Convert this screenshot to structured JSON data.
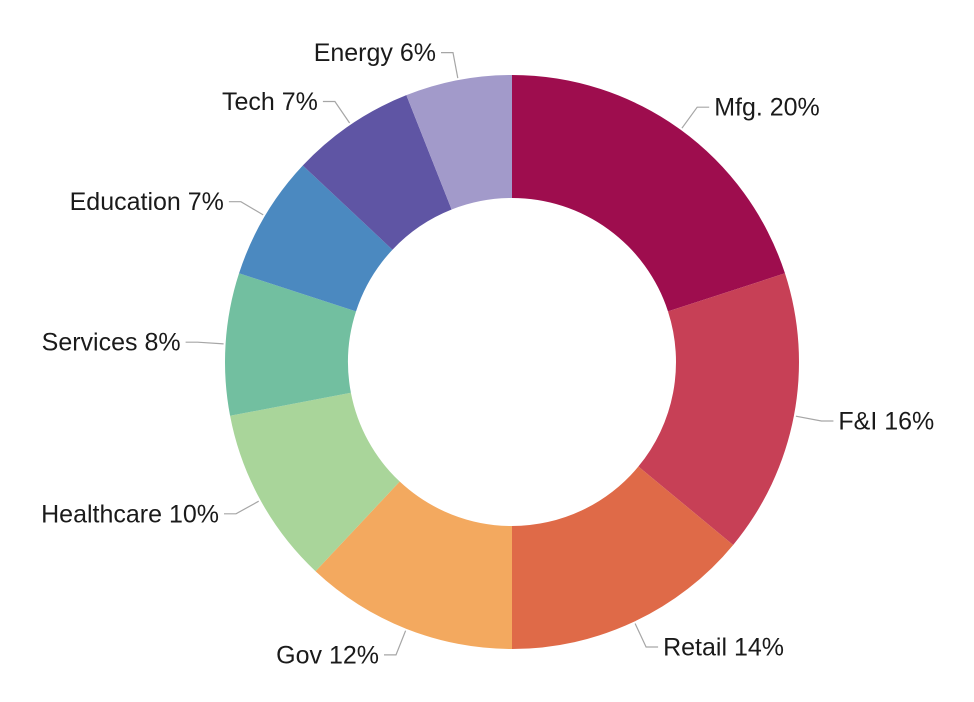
{
  "chart_data": {
    "type": "pie",
    "variant": "donut",
    "title": "",
    "legend_position": "none",
    "labels_style": "outside-with-leader-lines",
    "background_color": "#ffffff",
    "label_text_color": "#1a1a1a",
    "leader_line_color": "#a6a6a6",
    "start_angle_deg": 0,
    "direction": "clockwise",
    "inner_radius_ratio": 0.571,
    "total": 100,
    "categories": [
      "Mfg.",
      "F&I",
      "Retail",
      "Gov",
      "Healthcare",
      "Services",
      "Education",
      "Tech",
      "Energy"
    ],
    "values": [
      20,
      16,
      14,
      12,
      10,
      8,
      7,
      7,
      6
    ],
    "segments": [
      {
        "label": "Mfg.",
        "display_text": "Mfg. 20%",
        "value": 20,
        "color": "#9e0d4e"
      },
      {
        "label": "F&I",
        "display_text": "F&I 16%",
        "value": 16,
        "color": "#c74056"
      },
      {
        "label": "Retail",
        "display_text": "Retail 14%",
        "value": 14,
        "color": "#df6a48"
      },
      {
        "label": "Gov",
        "display_text": "Gov 12%",
        "value": 12,
        "color": "#f3a95f"
      },
      {
        "label": "Healthcare",
        "display_text": "Healthcare 10%",
        "value": 10,
        "color": "#a9d59a"
      },
      {
        "label": "Services",
        "display_text": "Services 8%",
        "value": 8,
        "color": "#72bfa0"
      },
      {
        "label": "Education",
        "display_text": "Education 7%",
        "value": 7,
        "color": "#4b89c0"
      },
      {
        "label": "Tech",
        "display_text": "Tech 7%",
        "value": 7,
        "color": "#5f55a4"
      },
      {
        "label": "Energy",
        "display_text": "Energy 6%",
        "value": 6,
        "color": "#a29aca"
      }
    ]
  }
}
